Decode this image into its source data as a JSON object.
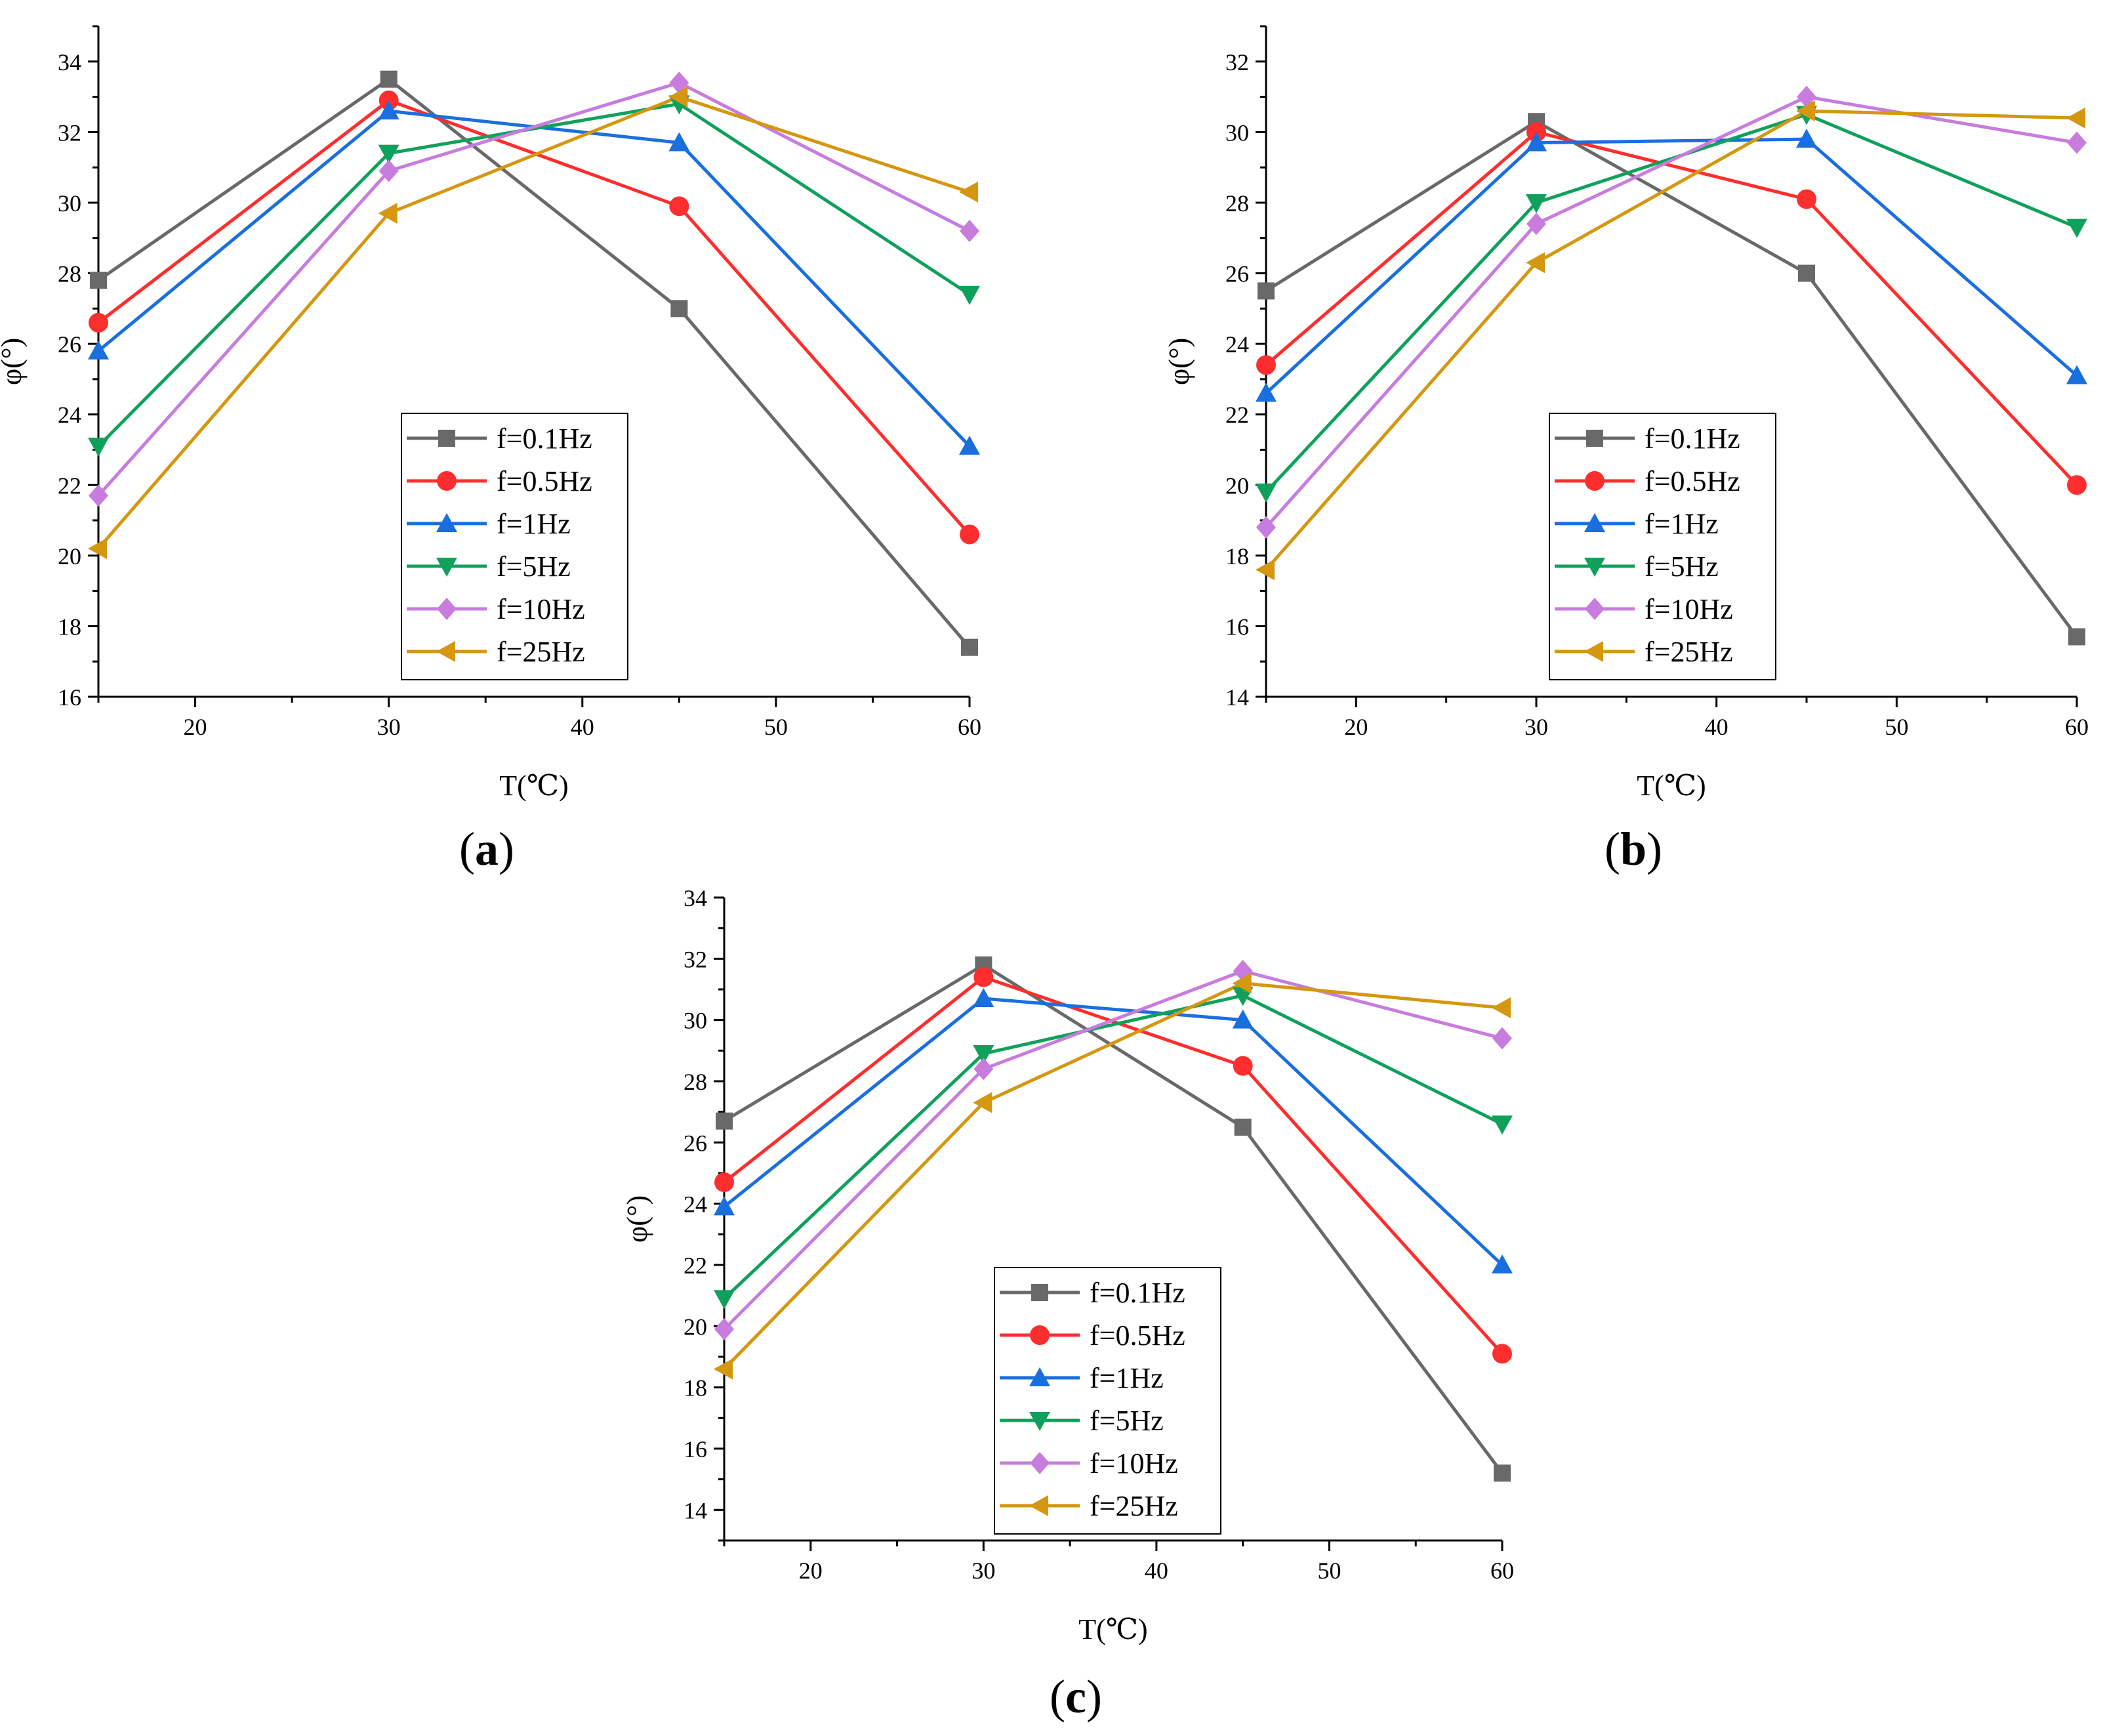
{
  "figure": {
    "panels": [
      "a",
      "b",
      "c"
    ]
  },
  "chart_data": [
    {
      "id": "a",
      "panel_label": "a",
      "type": "line",
      "xlabel": "T(℃)",
      "ylabel": "φ(°)",
      "xlim": [
        15,
        60
      ],
      "ylim": [
        16,
        35
      ],
      "xticks": [
        20,
        30,
        40,
        50,
        60
      ],
      "yticks": [
        16,
        18,
        20,
        22,
        24,
        26,
        28,
        30,
        32,
        34
      ],
      "x": [
        15,
        30,
        45,
        60
      ],
      "legend_position": "center-bottom",
      "series": [
        {
          "name": "f=0.1Hz",
          "color": "#696969",
          "marker": "square",
          "values": [
            27.8,
            33.5,
            27.0,
            17.4
          ]
        },
        {
          "name": "f=0.5Hz",
          "color": "#ff2e2e",
          "marker": "circle",
          "values": [
            26.6,
            32.9,
            29.9,
            20.6
          ]
        },
        {
          "name": "f=1Hz",
          "color": "#1a6fdf",
          "marker": "triangle-up",
          "values": [
            25.8,
            32.6,
            31.7,
            23.1
          ]
        },
        {
          "name": "f=5Hz",
          "color": "#0fa15c",
          "marker": "triangle-down",
          "values": [
            23.1,
            31.4,
            32.8,
            27.4
          ]
        },
        {
          "name": "f=10Hz",
          "color": "#c77cde",
          "marker": "diamond",
          "values": [
            21.7,
            30.9,
            33.4,
            29.2
          ]
        },
        {
          "name": "f=25Hz",
          "color": "#d4970f",
          "marker": "triangle-left",
          "values": [
            20.2,
            29.7,
            33.0,
            30.3
          ]
        }
      ]
    },
    {
      "id": "b",
      "panel_label": "b",
      "type": "line",
      "xlabel": "T(℃)",
      "ylabel": "φ(°)",
      "xlim": [
        15,
        60
      ],
      "ylim": [
        14,
        33
      ],
      "xticks": [
        20,
        30,
        40,
        50,
        60
      ],
      "yticks": [
        14,
        16,
        18,
        20,
        22,
        24,
        26,
        28,
        30,
        32
      ],
      "x": [
        15,
        30,
        45,
        60
      ],
      "legend_position": "center-bottom",
      "series": [
        {
          "name": "f=0.1Hz",
          "color": "#696969",
          "marker": "square",
          "values": [
            25.5,
            30.3,
            26.0,
            15.7
          ]
        },
        {
          "name": "f=0.5Hz",
          "color": "#ff2e2e",
          "marker": "circle",
          "values": [
            23.4,
            30.0,
            28.1,
            20.0
          ]
        },
        {
          "name": "f=1Hz",
          "color": "#1a6fdf",
          "marker": "triangle-up",
          "values": [
            22.6,
            29.7,
            29.8,
            23.1
          ]
        },
        {
          "name": "f=5Hz",
          "color": "#0fa15c",
          "marker": "triangle-down",
          "values": [
            19.8,
            28.0,
            30.5,
            27.3
          ]
        },
        {
          "name": "f=10Hz",
          "color": "#c77cde",
          "marker": "diamond",
          "values": [
            18.8,
            27.4,
            31.0,
            29.7
          ]
        },
        {
          "name": "f=25Hz",
          "color": "#d4970f",
          "marker": "triangle-left",
          "values": [
            17.6,
            26.3,
            30.6,
            30.4
          ]
        }
      ]
    },
    {
      "id": "c",
      "panel_label": "c",
      "type": "line",
      "xlabel": "T(℃)",
      "ylabel": "φ(°)",
      "xlim": [
        15,
        60
      ],
      "ylim": [
        13,
        34
      ],
      "xticks": [
        20,
        30,
        40,
        50,
        60
      ],
      "yticks": [
        14,
        16,
        18,
        20,
        22,
        24,
        26,
        28,
        30,
        32,
        34
      ],
      "x": [
        15,
        30,
        45,
        60
      ],
      "legend_position": "center-bottom",
      "series": [
        {
          "name": "f=0.1Hz",
          "color": "#696969",
          "marker": "square",
          "values": [
            26.7,
            31.8,
            26.5,
            15.2
          ]
        },
        {
          "name": "f=0.5Hz",
          "color": "#ff2e2e",
          "marker": "circle",
          "values": [
            24.7,
            31.4,
            28.5,
            19.1
          ]
        },
        {
          "name": "f=1Hz",
          "color": "#1a6fdf",
          "marker": "triangle-up",
          "values": [
            23.9,
            30.7,
            30.0,
            22.0
          ]
        },
        {
          "name": "f=5Hz",
          "color": "#0fa15c",
          "marker": "triangle-down",
          "values": [
            20.9,
            28.9,
            30.8,
            26.6
          ]
        },
        {
          "name": "f=10Hz",
          "color": "#c77cde",
          "marker": "diamond",
          "values": [
            19.9,
            28.4,
            31.6,
            29.4
          ]
        },
        {
          "name": "f=25Hz",
          "color": "#d4970f",
          "marker": "triangle-left",
          "values": [
            18.6,
            27.3,
            31.2,
            30.4
          ]
        }
      ]
    }
  ]
}
